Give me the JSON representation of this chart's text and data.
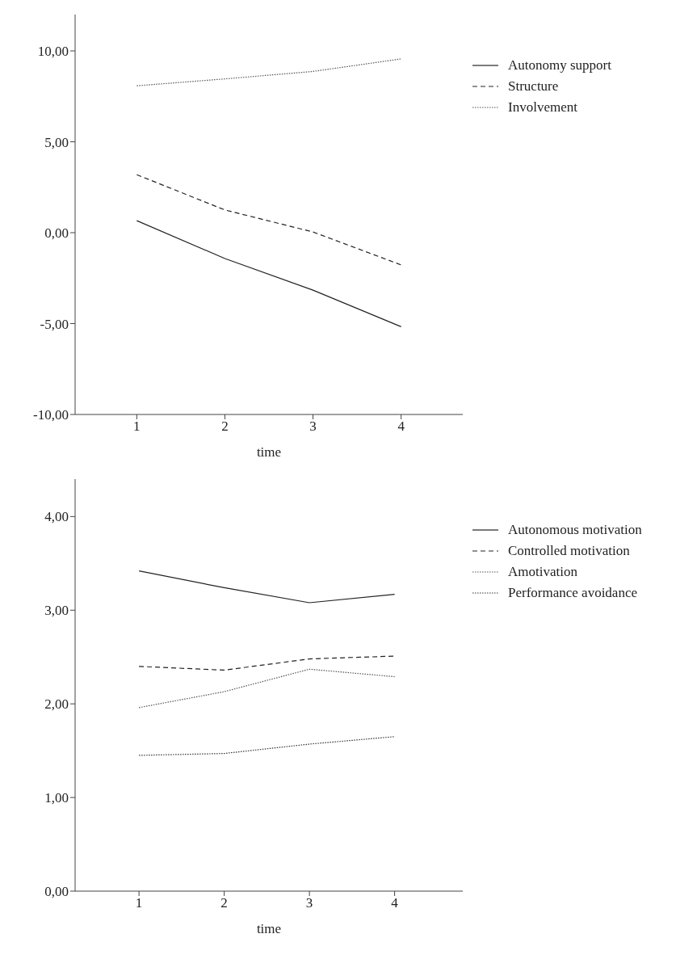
{
  "chart_data": [
    {
      "type": "line",
      "xlabel": "time",
      "x": [
        1,
        2,
        3,
        4
      ],
      "xlim": [
        0.3,
        4.7
      ],
      "xticks": [
        1,
        2,
        3,
        4
      ],
      "ylim": [
        -10,
        12
      ],
      "yticks": [
        {
          "value": -10,
          "label": "-10,00"
        },
        {
          "value": -5,
          "label": "-5,00"
        },
        {
          "value": 0,
          "label": "0,00"
        },
        {
          "value": 5,
          "label": "5,00"
        },
        {
          "value": 10,
          "label": "10,00"
        }
      ],
      "grid": false,
      "legend": "top right",
      "marker": "none",
      "series": [
        {
          "name": "Autonomy support",
          "color": "#222222",
          "line_style": "solid",
          "values": [
            0.66,
            -1.42,
            -3.16,
            -5.17
          ]
        },
        {
          "name": "Structure",
          "color": "#222222",
          "line_style": "dashed",
          "values": [
            3.19,
            1.25,
            0.04,
            -1.77
          ]
        },
        {
          "name": "Involvement",
          "color": "#555555",
          "line_style": "dotted",
          "values": [
            8.08,
            8.46,
            8.87,
            9.56
          ]
        }
      ]
    },
    {
      "type": "line",
      "xlabel": "time",
      "x": [
        1,
        2,
        3,
        4
      ],
      "xlim": [
        0.25,
        4.8
      ],
      "xticks": [
        1,
        2,
        3,
        4
      ],
      "ylim": [
        0,
        4.4
      ],
      "yticks": [
        {
          "value": 0,
          "label": "0,00"
        },
        {
          "value": 1,
          "label": "1,00"
        },
        {
          "value": 2,
          "label": "2,00"
        },
        {
          "value": 3,
          "label": "3,00"
        },
        {
          "value": 4,
          "label": "4,00"
        }
      ],
      "grid": false,
      "legend": "top right",
      "marker": "none",
      "series": [
        {
          "name": "Autonomous motivation",
          "color": "#222222",
          "line_style": "solid",
          "values": [
            3.42,
            3.24,
            3.08,
            3.17
          ]
        },
        {
          "name": "Controlled motivation",
          "color": "#222222",
          "line_style": "dashed",
          "values": [
            2.4,
            2.36,
            2.48,
            2.51
          ]
        },
        {
          "name": "Amotivation",
          "color": "#555555",
          "line_style": "dotted",
          "values": [
            1.96,
            2.13,
            2.37,
            2.29
          ]
        },
        {
          "name": "Performance avoidance",
          "color": "#333333",
          "line_style": "dotted",
          "values": [
            1.45,
            1.47,
            1.57,
            1.65
          ]
        }
      ]
    }
  ]
}
